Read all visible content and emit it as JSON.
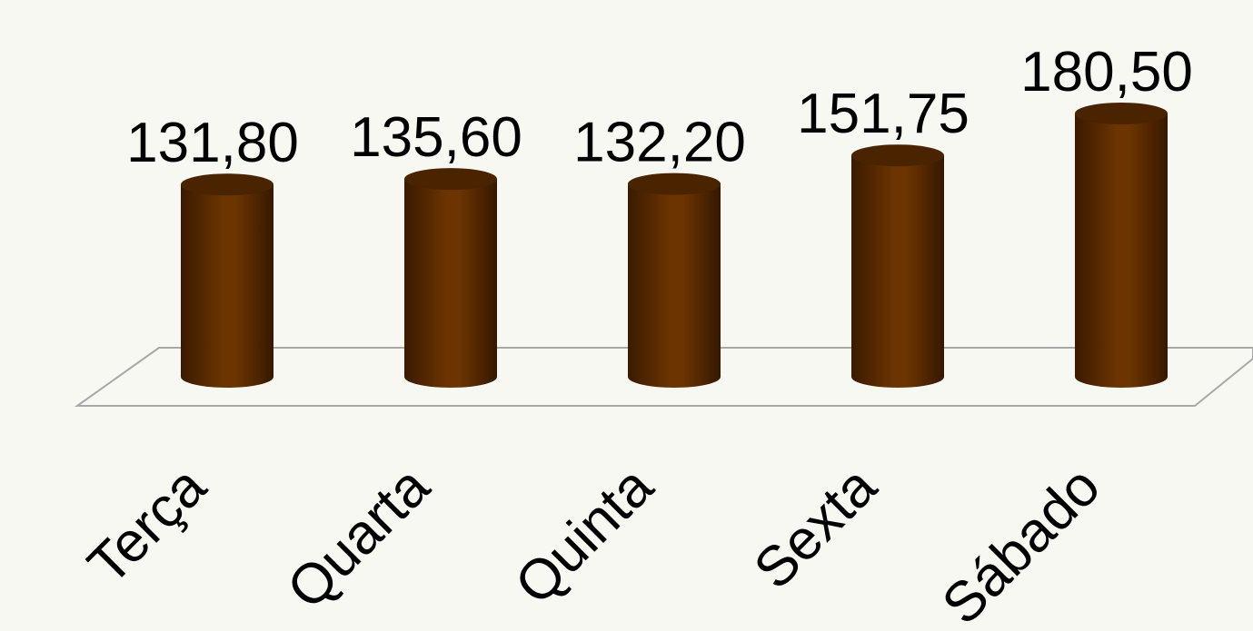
{
  "chart_data": {
    "type": "bar",
    "categories": [
      "Terça",
      "Quarta",
      "Quinta",
      "Sexta",
      "Sábado"
    ],
    "values": [
      131.8,
      135.6,
      132.2,
      151.75,
      180.5
    ],
    "value_labels": [
      "131,80",
      "135,60",
      "132,20",
      "151,75",
      "180,50"
    ],
    "color": "#6b3400"
  }
}
